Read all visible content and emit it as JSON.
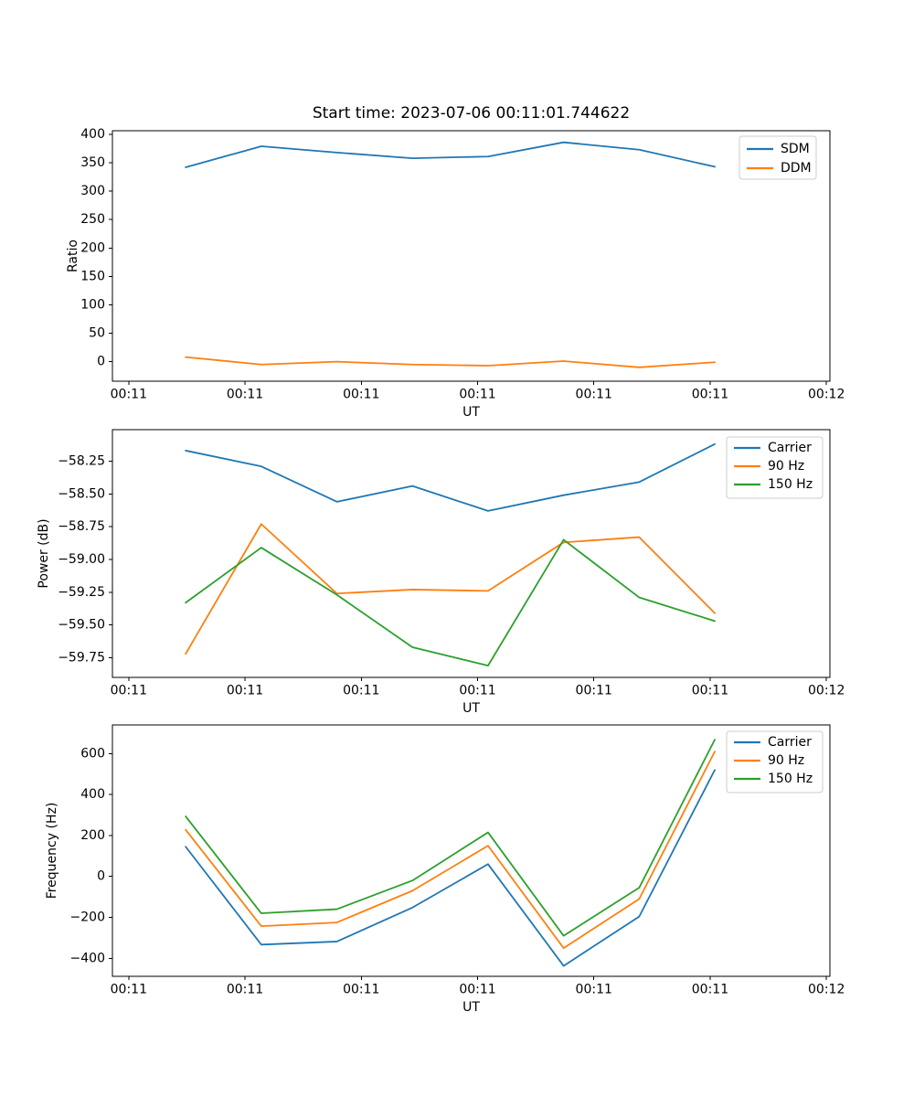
{
  "title": "Start time: 2023-07-06 00:11:01.744622",
  "colors": {
    "blue": "#1f77b4",
    "orange": "#ff7f0e",
    "green": "#2ca02c",
    "axis": "#000000",
    "text": "#000000",
    "legend_border": "#cccccc",
    "background": "#ffffff"
  },
  "chart_data": [
    {
      "type": "line",
      "title": "Start time: 2023-07-06 00:11:01.744622",
      "xlabel": "UT",
      "ylabel": "Ratio",
      "x": [
        4.9,
        11.4,
        17.9,
        24.4,
        30.9,
        37.4,
        43.9,
        50.4
      ],
      "series": [
        {
          "name": "SDM",
          "color": "blue",
          "values": [
            342,
            379,
            368,
            358,
            361,
            386,
            373,
            343
          ]
        },
        {
          "name": "DDM",
          "color": "orange",
          "values": [
            8,
            -5,
            0,
            -5,
            -7,
            1,
            -10,
            -1
          ]
        }
      ],
      "xlim": [
        -1.4,
        60.3
      ],
      "ylim": [
        -34.4,
        406.4
      ],
      "xticks": {
        "values": [
          0,
          10,
          20,
          30,
          40,
          50,
          60
        ],
        "labels": [
          "00:11",
          "00:11",
          "00:11",
          "00:11",
          "00:11",
          "00:11",
          "00:12"
        ]
      },
      "yticks": {
        "values": [
          0,
          50,
          100,
          150,
          200,
          250,
          300,
          350,
          400
        ],
        "labels": [
          "0",
          "50",
          "100",
          "150",
          "200",
          "250",
          "300",
          "350",
          "400"
        ]
      },
      "legend": {
        "position": "upper right",
        "entries": [
          "SDM",
          "DDM"
        ]
      },
      "grid": false
    },
    {
      "type": "line",
      "title": "",
      "xlabel": "UT",
      "ylabel": "Power (dB)",
      "x": [
        4.9,
        11.4,
        17.9,
        24.4,
        30.9,
        37.4,
        43.9,
        50.4
      ],
      "series": [
        {
          "name": "Carrier",
          "color": "blue",
          "values": [
            -58.17,
            -58.29,
            -58.56,
            -58.44,
            -58.63,
            -58.51,
            -58.41,
            -58.12
          ]
        },
        {
          "name": "90 Hz",
          "color": "orange",
          "values": [
            -59.72,
            -58.73,
            -59.26,
            -59.23,
            -59.24,
            -58.87,
            -58.83,
            -59.41
          ]
        },
        {
          "name": "150 Hz",
          "color": "green",
          "values": [
            -59.33,
            -58.91,
            -59.27,
            -59.67,
            -59.81,
            -58.85,
            -59.29,
            -59.47
          ]
        }
      ],
      "xlim": [
        -1.4,
        60.3
      ],
      "ylim": [
        -59.9,
        -58.01
      ],
      "xticks": {
        "values": [
          0,
          10,
          20,
          30,
          40,
          50,
          60
        ],
        "labels": [
          "00:11",
          "00:11",
          "00:11",
          "00:11",
          "00:11",
          "00:11",
          "00:12"
        ]
      },
      "yticks": {
        "values": [
          -58.25,
          -58.5,
          -58.75,
          -59.0,
          -59.25,
          -59.5,
          -59.75
        ],
        "labels": [
          "−58.25",
          "−58.50",
          "−58.75",
          "−59.00",
          "−59.25",
          "−59.50",
          "−59.75"
        ]
      },
      "legend": {
        "position": "upper right",
        "entries": [
          "Carrier",
          "90 Hz",
          "150 Hz"
        ]
      },
      "grid": false
    },
    {
      "type": "line",
      "title": "",
      "xlabel": "UT",
      "ylabel": "Frequency (Hz)",
      "x": [
        4.9,
        11.4,
        17.9,
        24.4,
        30.9,
        37.4,
        43.9,
        50.4
      ],
      "series": [
        {
          "name": "Carrier",
          "color": "blue",
          "values": [
            145,
            -333,
            -318,
            -152,
            60,
            -437,
            -196,
            520
          ]
        },
        {
          "name": "90 Hz",
          "color": "orange",
          "values": [
            228,
            -243,
            -225,
            -70,
            150,
            -350,
            -110,
            610
          ]
        },
        {
          "name": "150 Hz",
          "color": "green",
          "values": [
            293,
            -180,
            -160,
            -20,
            215,
            -290,
            -55,
            668
          ]
        }
      ],
      "xlim": [
        -1.4,
        60.3
      ],
      "ylim": [
        -488,
        740
      ],
      "xticks": {
        "values": [
          0,
          10,
          20,
          30,
          40,
          50,
          60
        ],
        "labels": [
          "00:11",
          "00:11",
          "00:11",
          "00:11",
          "00:11",
          "00:11",
          "00:12"
        ]
      },
      "yticks": {
        "values": [
          600,
          400,
          200,
          0,
          -200,
          -400
        ],
        "labels": [
          "600",
          "400",
          "200",
          "0",
          "−200",
          "−400"
        ]
      },
      "legend": {
        "position": "upper right",
        "entries": [
          "Carrier",
          "90 Hz",
          "150 Hz"
        ]
      },
      "grid": false
    }
  ]
}
